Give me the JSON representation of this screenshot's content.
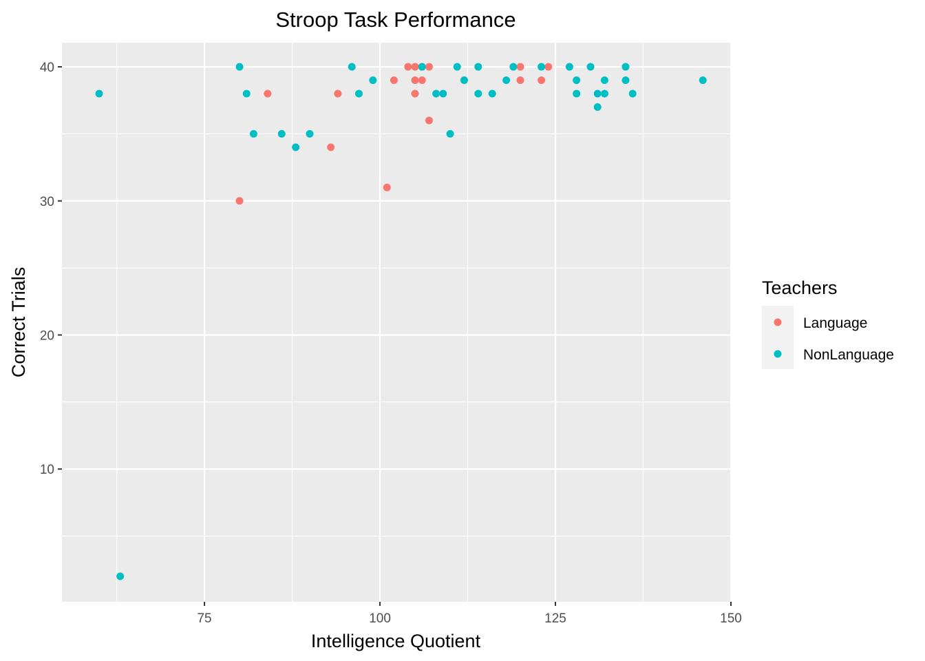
{
  "chart_data": {
    "type": "scatter",
    "title": "Stroop Task Performance",
    "xlabel": "Intelligence Quotient",
    "ylabel": "Correct Trials",
    "xlim": [
      54.7,
      149.9
    ],
    "ylim": [
      0.1,
      41.8
    ],
    "x_ticks": [
      75,
      100,
      125,
      150
    ],
    "y_ticks": [
      10,
      20,
      30,
      40
    ],
    "x_tick_labels": [
      "75",
      "100",
      "125",
      "150"
    ],
    "y_tick_labels": [
      "10",
      "20",
      "30",
      "40"
    ],
    "grid": true,
    "legend": {
      "title": "Teachers",
      "position": "right"
    },
    "series": [
      {
        "name": "Language",
        "color": "#F8766D",
        "points": [
          [
            80,
            30
          ],
          [
            84,
            38
          ],
          [
            93,
            34
          ],
          [
            94,
            38
          ],
          [
            101,
            31
          ],
          [
            102,
            39
          ],
          [
            104,
            40
          ],
          [
            105,
            40
          ],
          [
            105,
            39
          ],
          [
            105,
            38
          ],
          [
            106,
            40
          ],
          [
            106,
            39
          ],
          [
            107,
            40
          ],
          [
            107,
            36
          ],
          [
            112,
            39
          ],
          [
            120,
            40
          ],
          [
            120,
            39
          ],
          [
            123,
            39
          ],
          [
            124,
            40
          ]
        ]
      },
      {
        "name": "NonLanguage",
        "color": "#00BFC4",
        "points": [
          [
            60,
            38
          ],
          [
            63,
            2
          ],
          [
            80,
            40
          ],
          [
            81,
            38
          ],
          [
            82,
            35
          ],
          [
            86,
            35
          ],
          [
            88,
            34
          ],
          [
            90,
            35
          ],
          [
            96,
            40
          ],
          [
            97,
            38
          ],
          [
            99,
            39
          ],
          [
            106,
            40
          ],
          [
            108,
            38
          ],
          [
            109,
            38
          ],
          [
            110,
            35
          ],
          [
            111,
            40
          ],
          [
            112,
            39
          ],
          [
            114,
            40
          ],
          [
            114,
            38
          ],
          [
            116,
            38
          ],
          [
            118,
            39
          ],
          [
            119,
            40
          ],
          [
            123,
            40
          ],
          [
            127,
            40
          ],
          [
            128,
            39
          ],
          [
            128,
            38
          ],
          [
            130,
            40
          ],
          [
            131,
            38
          ],
          [
            131,
            37
          ],
          [
            132,
            39
          ],
          [
            132,
            38
          ],
          [
            135,
            40
          ],
          [
            135,
            39
          ],
          [
            136,
            38
          ],
          [
            146,
            39
          ]
        ]
      }
    ]
  }
}
